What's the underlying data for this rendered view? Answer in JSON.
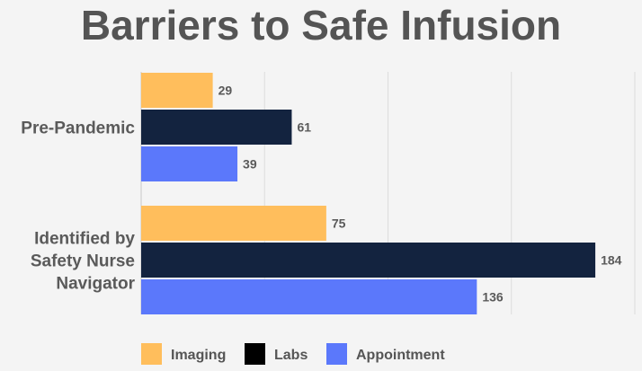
{
  "chart_data": {
    "type": "bar",
    "orientation": "horizontal",
    "title": "Barriers to Safe Infusion",
    "categories": [
      [
        "Pre-Pandemic"
      ],
      [
        "Identified by",
        "Safety Nurse",
        "Navigator"
      ]
    ],
    "series": [
      {
        "name": "Imaging",
        "color": "#ffbe5c",
        "values": [
          29,
          75
        ]
      },
      {
        "name": "Labs",
        "color": "#13233f",
        "values": [
          61,
          184
        ]
      },
      {
        "name": "Appointment",
        "color": "#5b78fb",
        "values": [
          39,
          136
        ]
      }
    ],
    "xlim": [
      0,
      200
    ],
    "grid": true,
    "legend": "bottom",
    "data_labels": true
  }
}
